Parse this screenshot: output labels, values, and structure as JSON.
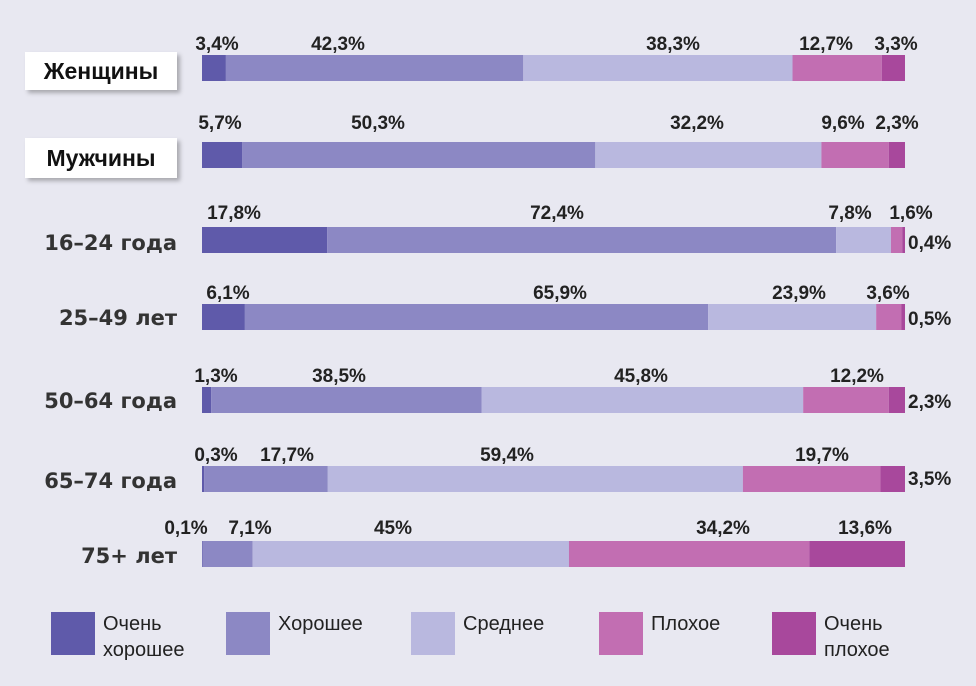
{
  "chart_data": {
    "type": "bar",
    "orientation": "horizontal-stacked",
    "title": "",
    "xlim": [
      0,
      100
    ],
    "legend_placement": "bottom",
    "categories": [
      "Очень хорошее",
      "Хорошее",
      "Среднее",
      "Плохое",
      "Очень плохое"
    ],
    "colors": [
      "#5f5aaa",
      "#8c88c4",
      "#b9b8df",
      "#c26eb2",
      "#a8489c"
    ],
    "legend": [
      [
        "Очень",
        "хорошее"
      ],
      [
        "Хорошее"
      ],
      [
        "Среднее"
      ],
      [
        "Плохое"
      ],
      [
        "Очень",
        "плохое"
      ]
    ],
    "rows": [
      {
        "label": "Женщины",
        "boxed": true,
        "values": [
          3.4,
          42.3,
          38.3,
          12.7,
          3.3
        ],
        "labels": [
          "3,4%",
          "42,3%",
          "38,3%",
          "12,7%",
          "3,3%"
        ]
      },
      {
        "label": "Мужчины",
        "boxed": true,
        "values": [
          5.7,
          50.3,
          32.2,
          9.6,
          2.3
        ],
        "labels": [
          "5,7%",
          "50,3%",
          "32,2%",
          "9,6%",
          "2,3%"
        ]
      },
      {
        "label": "16–24 года",
        "boxed": false,
        "values": [
          17.8,
          72.4,
          7.8,
          1.6,
          0.4
        ],
        "labels": [
          "17,8%",
          "72,4%",
          "7,8%",
          "1,6%",
          "0,4%"
        ]
      },
      {
        "label": "25–49 лет",
        "boxed": false,
        "values": [
          6.1,
          65.9,
          23.9,
          3.6,
          0.5
        ],
        "labels": [
          "6,1%",
          "65,9%",
          "23,9%",
          "3,6%",
          "0,5%"
        ]
      },
      {
        "label": "50–64 года",
        "boxed": false,
        "values": [
          1.3,
          38.5,
          45.8,
          12.2,
          2.3
        ],
        "labels": [
          "1,3%",
          "38,5%",
          "45,8%",
          "12,2%",
          "2,3%"
        ]
      },
      {
        "label": "65–74 года",
        "boxed": false,
        "values": [
          0.3,
          17.7,
          59.4,
          19.7,
          3.5
        ],
        "labels": [
          "0,3%",
          "17,7%",
          "59,4%",
          "19,7%",
          "3,5%"
        ]
      },
      {
        "label": "75+ лет",
        "boxed": false,
        "values": [
          0.1,
          7.1,
          45,
          34.2,
          13.6
        ],
        "labels": [
          "0,1%",
          "7,1%",
          "45%",
          "34,2%",
          "13,6%"
        ]
      }
    ]
  }
}
